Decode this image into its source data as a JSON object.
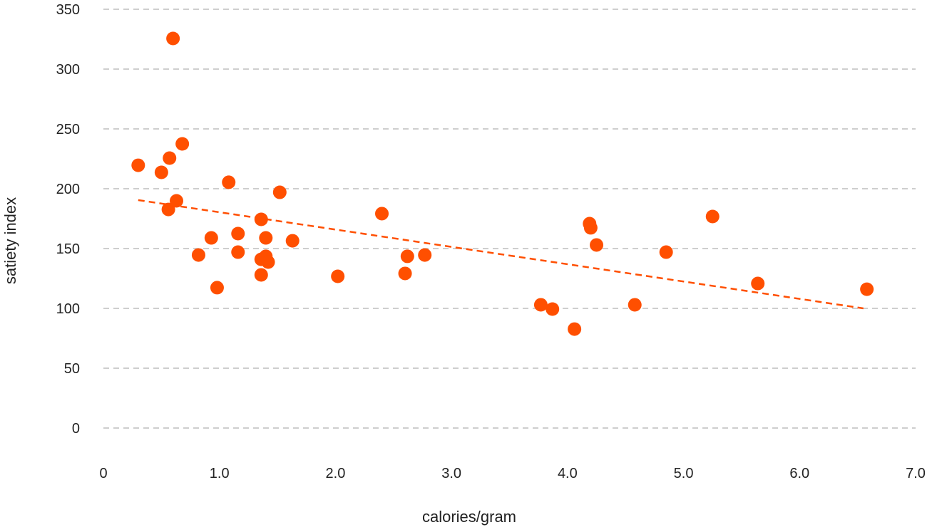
{
  "chart_data": {
    "type": "scatter",
    "title": "",
    "xlabel": "calories/gram",
    "ylabel": "satiety index",
    "xlim": [
      0,
      7
    ],
    "ylim": [
      0,
      350
    ],
    "grid": "horizontal dashed",
    "x_ticks": [
      "0",
      "1.0",
      "2.0",
      "3.0",
      "4.0",
      "5.0",
      "6.0",
      "7.0"
    ],
    "x_tick_values": [
      0,
      1,
      2,
      3,
      4,
      5,
      6,
      7
    ],
    "y_ticks": [
      "0",
      "50",
      "100",
      "150",
      "200",
      "250",
      "300",
      "350"
    ],
    "y_tick_values": [
      0,
      50,
      100,
      150,
      200,
      250,
      300,
      350
    ],
    "point_color": "#FF4F00",
    "points": [
      [
        0.6,
        325.6
      ],
      [
        0.3,
        219.6
      ],
      [
        0.5,
        213.7
      ],
      [
        0.57,
        225.6
      ],
      [
        0.68,
        237.5
      ],
      [
        0.56,
        182.7
      ],
      [
        0.63,
        189.9
      ],
      [
        0.82,
        144.6
      ],
      [
        0.93,
        158.9
      ],
      [
        0.98,
        117.3
      ],
      [
        1.08,
        205.4
      ],
      [
        1.16,
        162.5
      ],
      [
        1.16,
        147
      ],
      [
        1.36,
        174.4
      ],
      [
        1.36,
        141
      ],
      [
        1.36,
        128
      ],
      [
        1.4,
        158.9
      ],
      [
        1.4,
        143.5
      ],
      [
        1.42,
        138.7
      ],
      [
        1.52,
        197
      ],
      [
        1.63,
        156.5
      ],
      [
        2.02,
        126.8
      ],
      [
        2.4,
        179.2
      ],
      [
        2.6,
        129.2
      ],
      [
        2.62,
        143.5
      ],
      [
        2.77,
        144.6
      ],
      [
        3.77,
        103
      ],
      [
        3.87,
        99.4
      ],
      [
        4.06,
        82.7
      ],
      [
        4.19,
        170.8
      ],
      [
        4.2,
        167.3
      ],
      [
        4.25,
        153
      ],
      [
        4.58,
        103
      ],
      [
        4.85,
        147
      ],
      [
        5.25,
        176.8
      ],
      [
        5.64,
        120.8
      ],
      [
        6.58,
        116
      ]
    ],
    "trendline": {
      "x": [
        0.3,
        6.55
      ],
      "y": [
        190.5,
        100
      ],
      "style": "dashed",
      "color": "#FF4F00"
    }
  }
}
